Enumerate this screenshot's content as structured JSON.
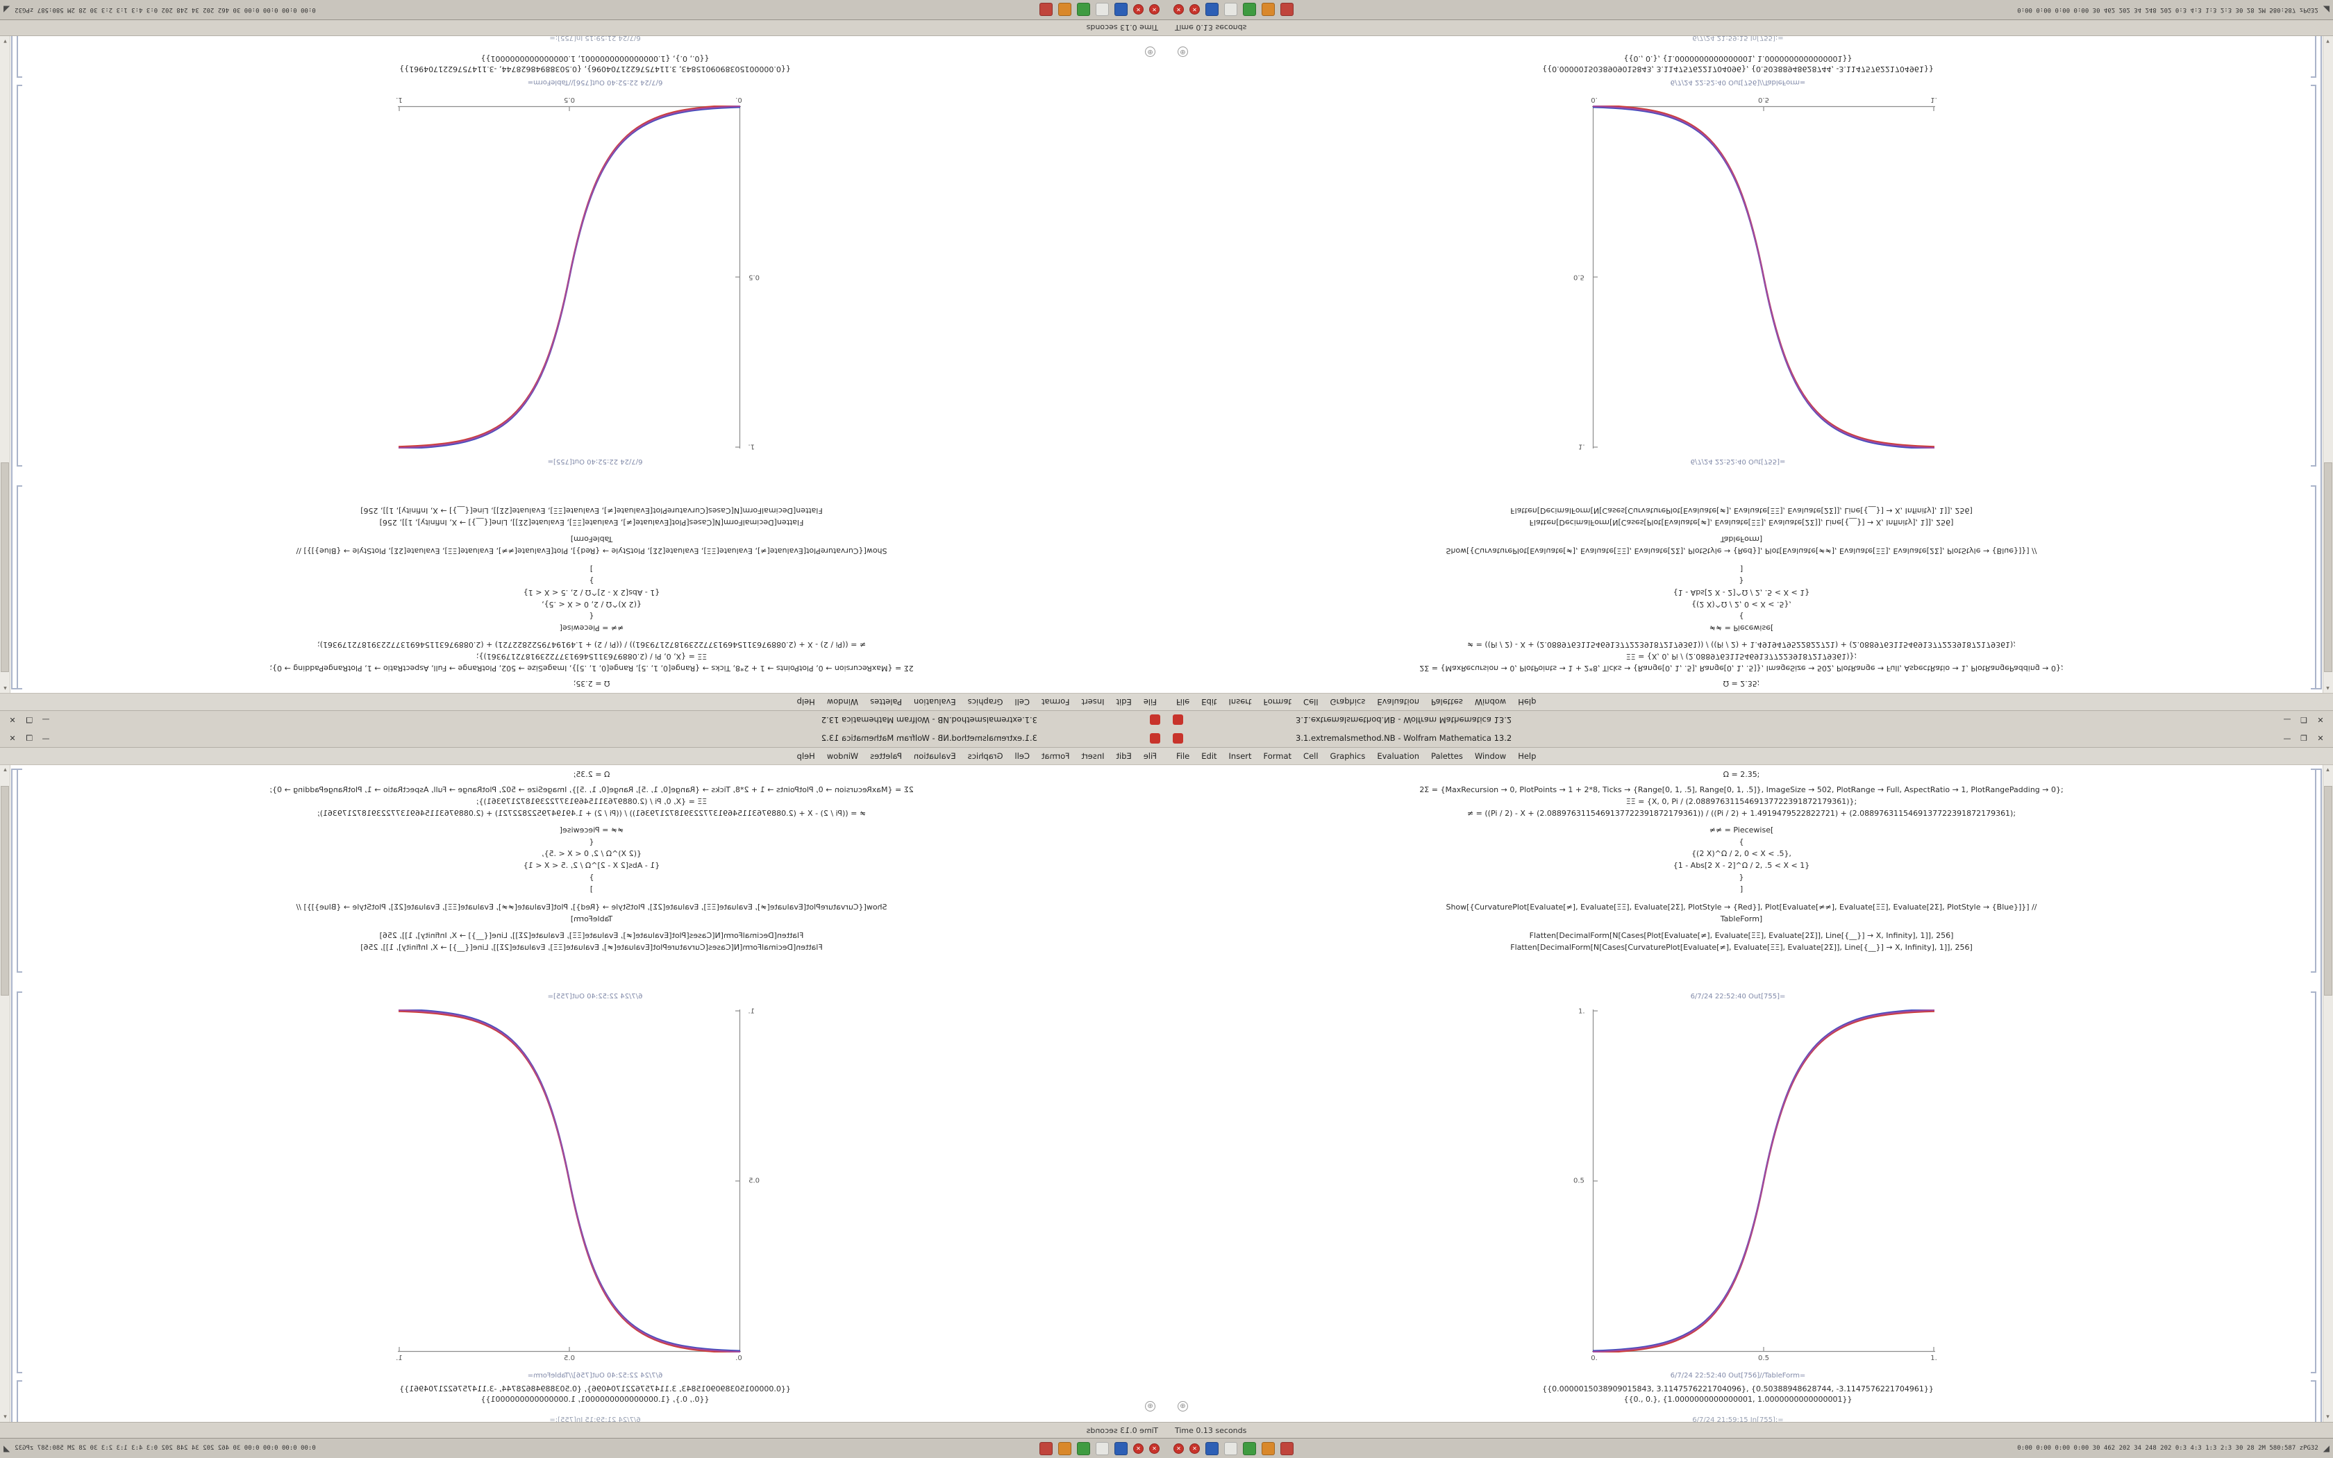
{
  "window": {
    "title": "3.1.extremalsmethod.NB - Wolfram Mathematica 13.2",
    "controls": {
      "minimize": "—",
      "maximize": "❒",
      "close": "✕"
    },
    "menu": [
      "File",
      "Edit",
      "Insert",
      "Format",
      "Cell",
      "Graphics",
      "Evaluation",
      "Palettes",
      "Window",
      "Help"
    ],
    "status_left": "Time 0.13 seconds",
    "glyphs": {
      "plus": "⊕",
      "scroll_up": "▴",
      "scroll_down": "▾",
      "tray": "◢"
    }
  },
  "notebook": {
    "code_lines": [
      "Ω = 2.35;",
      "2Σ = {MaxRecursion → 0, PlotPoints → 1 + 2*8, Ticks → {Range[0, 1, .5], Range[0, 1, .5]}, ImageSize → 502, PlotRange → Full, AspectRatio → 1, PlotRangePadding → 0};",
      "ΞΞ = {X, 0, Pi / (2.0889763115469137722391872179361)};",
      "≠ = ((Pi / 2) - X + (2.0889763115469137722391872179361)) / ((Pi / 2) + 1.4919479522822721) + (2.0889763115469137722391872179361);",
      "≠≠ = Piecewise[",
      "{",
      "{(2 X)^Ω / 2, 0 < X < .5},",
      "{1 - Abs[2 X - 2]^Ω / 2, .5 < X < 1}",
      "}",
      "]",
      "Show[{CurvaturePlot[Evaluate[≠], Evaluate[ΞΞ], Evaluate[2Σ], PlotStyle → {Red}], Plot[Evaluate[≠≠], Evaluate[ΞΞ], Evaluate[2Σ], PlotStyle → {Blue}]}] //",
      "TableForm]",
      "Flatten[DecimalForm[N[Cases[Plot[Evaluate[≠], Evaluate[ΞΞ], Evaluate[2Σ]], Line[{__}] → X, Infinity], 1]], 256]",
      "Flatten[DecimalForm[N[Cases[CurvaturePlot[Evaluate[≠], Evaluate[ΞΞ], Evaluate[2Σ]], Line[{__}] → X, Infinity], 1]], 256]"
    ],
    "out_label_1": "6/7/24 22:52:40 Out[755]=",
    "out_label_2": "6/7/24 22:52:40 Out[756]//TableForm=",
    "output_lines": [
      "{{0.0000015038909015843, 3.1147576221704096}, {0.50388948628744, -3.1147576221704961}}",
      "{{0., 0.}, {1.0000000000000001, 1.0000000000000001}}"
    ],
    "next_cell_label": "6/7/24 21:59:15 In[755]:="
  },
  "plot": {
    "x_ticks": [
      "0.",
      "0.5",
      "1."
    ],
    "y_ticks": [
      "0.5",
      "1."
    ],
    "red": "#cf3d33",
    "blue": "#3a4cc0",
    "purple": "#a04a9e",
    "axis_color": "#8c8c8c"
  },
  "chart_data": {
    "type": "line",
    "title": "",
    "xlabel": "",
    "ylabel": "",
    "xlim": [
      0,
      1
    ],
    "ylim": [
      0,
      1
    ],
    "x": [
      0,
      0.125,
      0.25,
      0.375,
      0.5,
      0.625,
      0.75,
      0.875,
      1
    ],
    "series": [
      {
        "name": "CurvaturePlot (Red)",
        "values": [
          0,
          0.019,
          0.098,
          0.254,
          0.5,
          0.746,
          0.902,
          0.981,
          1
        ]
      },
      {
        "name": "Plot (Blue)",
        "values": [
          0,
          0.019,
          0.098,
          0.254,
          0.5,
          0.746,
          0.902,
          0.981,
          1
        ]
      }
    ],
    "x_tick_labels": [
      "0.",
      "0.5",
      "1."
    ],
    "y_tick_labels": [
      "0.5",
      "1."
    ],
    "legend": "none",
    "grid": false
  },
  "taskbar": {
    "icons": [
      {
        "name": "close-red-icon",
        "color": "#c8332b",
        "glyph": "✕"
      },
      {
        "name": "close-red-icon",
        "color": "#c8332b",
        "glyph": "✕"
      },
      {
        "name": "app-blue-icon",
        "color": "#2d5fb5"
      },
      {
        "name": "app-light-icon",
        "color": "#e6e6e2"
      },
      {
        "name": "app-green-icon",
        "color": "#3f9b41"
      },
      {
        "name": "app-orange-icon",
        "color": "#d9882b"
      },
      {
        "name": "app-red-icon",
        "color": "#c0453c"
      }
    ],
    "stats": "0:00 0:00 0:00 0:00  30 462 202  34 248 202  0:3 4:3 1:3 2:3  30 28 2M 580:587  zPG32"
  }
}
